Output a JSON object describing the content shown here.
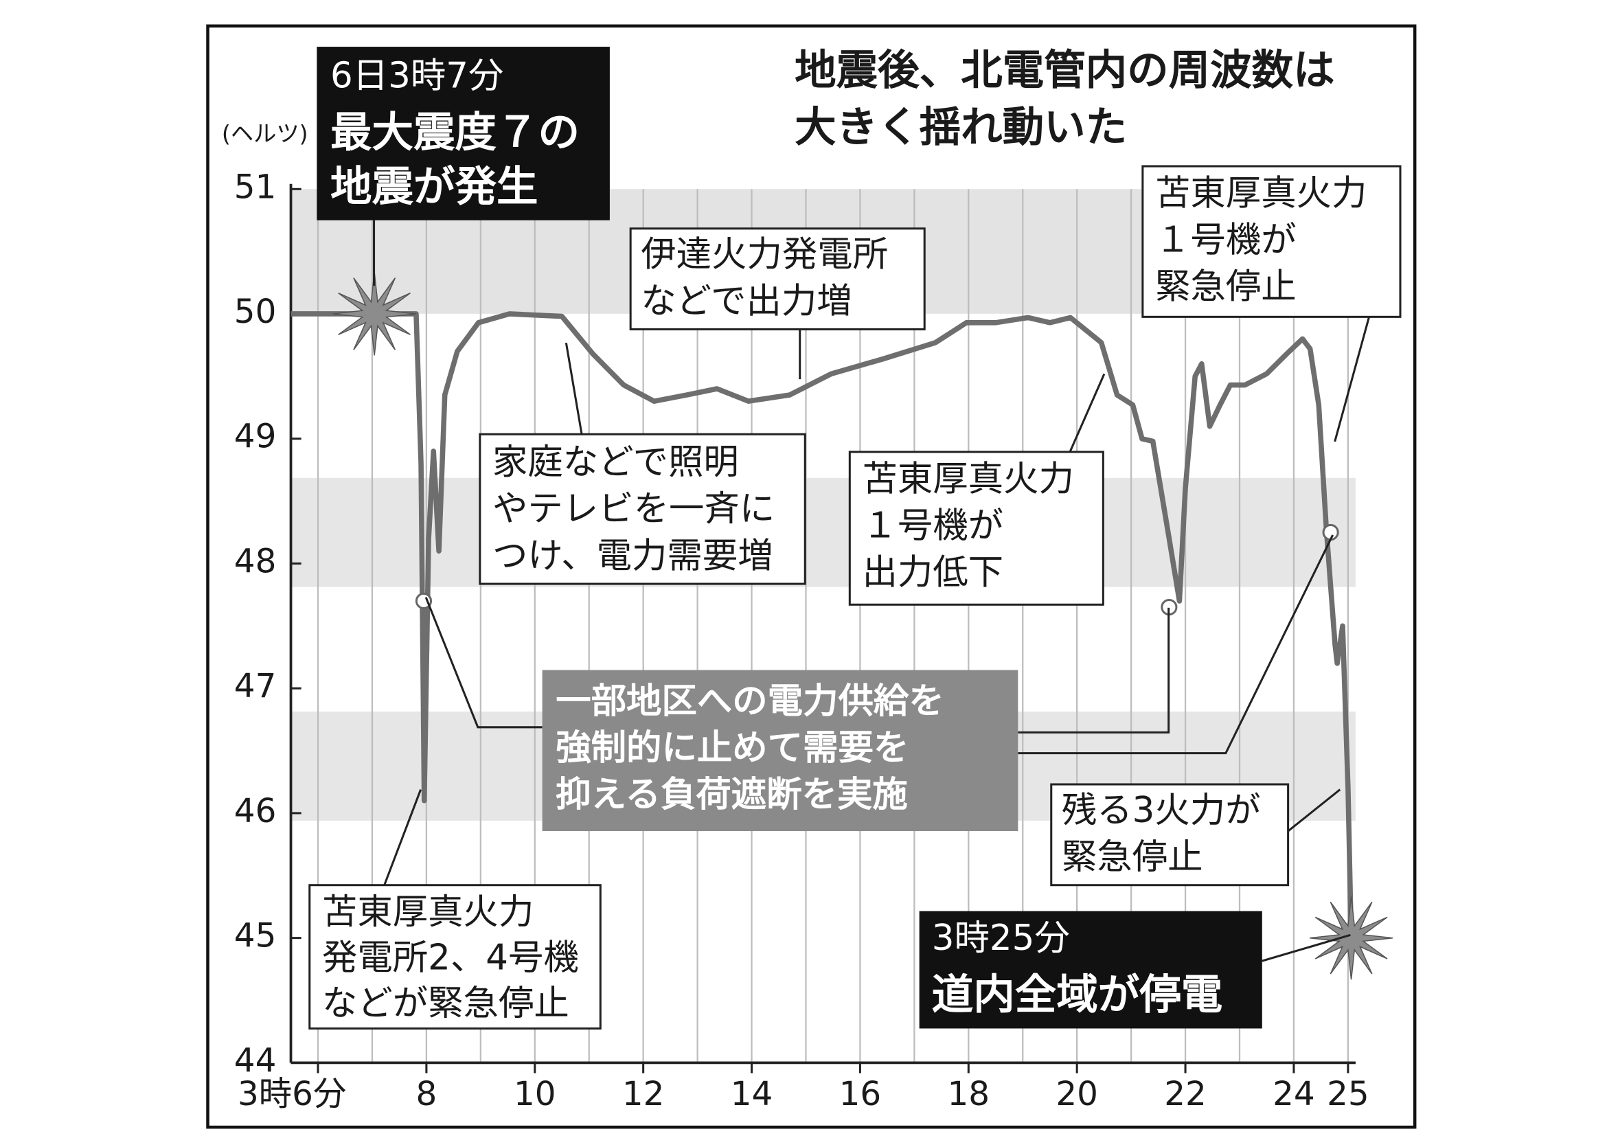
{
  "chart_data": {
    "type": "line",
    "title": [
      "地震後、北電管内の周波数は",
      "大きく揺れ動いた"
    ],
    "y_unit": "(ヘルツ)",
    "xlim": [
      5.5,
      25.14
    ],
    "ylim": [
      44,
      51
    ],
    "xticks": [
      {
        "value": 6,
        "label": "3時6分"
      },
      8,
      10,
      12,
      14,
      16,
      18,
      20,
      22,
      24,
      25
    ],
    "x_minor_ticks": [
      7,
      9,
      11,
      13,
      15,
      17,
      19,
      21,
      23
    ],
    "yticks": [
      44,
      45,
      46,
      47,
      48,
      49,
      50,
      51
    ],
    "series": [
      {
        "color": "#6e6e6e",
        "x": [
          5.5,
          7.81,
          7.9,
          7.96,
          8.04,
          8.13,
          8.23,
          8.34,
          8.57,
          8.96,
          9.53,
          10.5,
          11.07,
          11.64,
          12.2,
          12.8,
          13.36,
          13.94,
          14.7,
          15.47,
          16.43,
          17.39,
          17.96,
          18.5,
          19.1,
          19.5,
          19.88,
          20.45,
          20.74,
          21.03,
          21.2,
          21.4,
          21.7,
          21.89,
          22.0,
          22.18,
          22.3,
          22.45,
          22.64,
          22.83,
          23.1,
          23.5,
          23.87,
          24.16,
          24.3,
          24.46,
          24.6,
          24.76,
          24.8,
          24.9,
          25.0,
          25.06
        ],
        "values": [
          50.0,
          50.0,
          48.8,
          46.1,
          48.2,
          48.9,
          48.1,
          49.35,
          49.7,
          49.93,
          50.0,
          49.98,
          49.68,
          49.43,
          49.3,
          49.35,
          49.4,
          49.3,
          49.35,
          49.52,
          49.64,
          49.77,
          49.93,
          49.93,
          49.97,
          49.93,
          49.97,
          49.77,
          49.35,
          49.27,
          49.0,
          48.98,
          48.2,
          47.7,
          48.6,
          49.5,
          49.6,
          49.1,
          49.27,
          49.43,
          49.43,
          49.52,
          49.68,
          49.8,
          49.72,
          49.27,
          48.28,
          47.35,
          47.2,
          47.5,
          46.2,
          45.0
        ]
      }
    ],
    "burst_points": {
      "x": [
        7.04,
        25.06
      ],
      "y": [
        50.0,
        45.0
      ]
    },
    "dot_points": {
      "x": [
        7.95,
        21.7,
        24.68
      ],
      "y": [
        47.7,
        47.65,
        48.25
      ]
    },
    "annotations": [
      {
        "lines": [
          "6日3時7分",
          "最大震度７の",
          "地震が発生"
        ]
      },
      {
        "lines": [
          "伊達火力発電所",
          "などで出力増"
        ]
      },
      {
        "lines": [
          "苫東厚真火力",
          "１号機が",
          "緊急停止"
        ]
      },
      {
        "lines": [
          "家庭などで照明",
          "やテレビを一斉に",
          "つけ、電力需要増"
        ]
      },
      {
        "lines": [
          "苫東厚真火力",
          "１号機が",
          "出力低下"
        ]
      },
      {
        "lines": [
          "一部地区への電力供給を",
          "強制的に止めて需要を",
          "抑える負荷遮断を実施"
        ]
      },
      {
        "lines": [
          "残る3火力が",
          "緊急停止"
        ]
      },
      {
        "lines": [
          "3時25分",
          "道内全域が停電"
        ]
      },
      {
        "lines": [
          "苫東厚真火力",
          "発電所2、4号機",
          "などが緊急停止"
        ]
      }
    ]
  }
}
